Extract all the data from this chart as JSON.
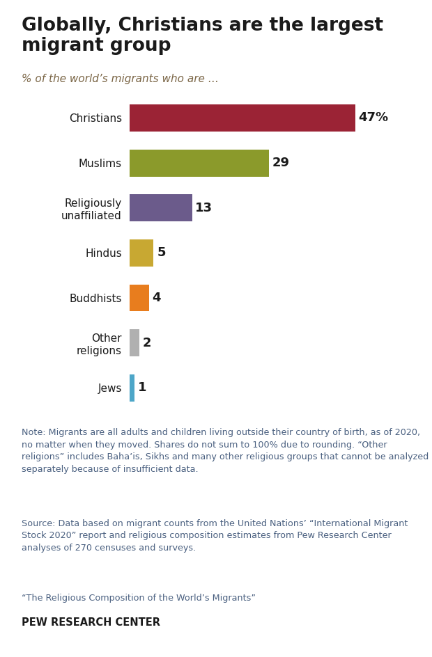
{
  "title": "Globally, Christians are the largest\nmigrant group",
  "subtitle": "% of the world’s migrants who are …",
  "categories": [
    "Christians",
    "Muslims",
    "Religiously\nunaffiliated",
    "Hindus",
    "Buddhists",
    "Other\nreligions",
    "Jews"
  ],
  "values": [
    47,
    29,
    13,
    5,
    4,
    2,
    1
  ],
  "bar_colors": [
    "#9b2335",
    "#8b9a2b",
    "#6b5b8b",
    "#c8a832",
    "#e87d1e",
    "#b0b0b0",
    "#4da6c8"
  ],
  "value_labels": [
    "47%",
    "29",
    "13",
    "5",
    "4",
    "2",
    "1"
  ],
  "note_line1": "Note: Migrants are all adults and children living outside their country of birth, as of 2020, no matter when they moved. Shares do not sum to 100% due to rounding. “Other religions” includes Bahaʼis, Sikhs and many other religious groups that cannot be analyzed separately because of insufficient data.",
  "note_line2": "Source: Data based on migrant counts from the United Nations’ “International Migrant Stock 2020” report and religious composition estimates from Pew Research Center analyses of 270 censuses and surveys.",
  "note_line3": "“The Religious Composition of the World’s Migrants”",
  "footer": "PEW RESEARCH CENTER",
  "bg_color": "#ffffff",
  "title_color": "#1a1a1a",
  "subtitle_color": "#7a6545",
  "note_color": "#4a6080",
  "footer_color": "#1a1a1a",
  "label_color": "#1a1a1a",
  "xlim": [
    0,
    54
  ],
  "bar_height": 0.6
}
